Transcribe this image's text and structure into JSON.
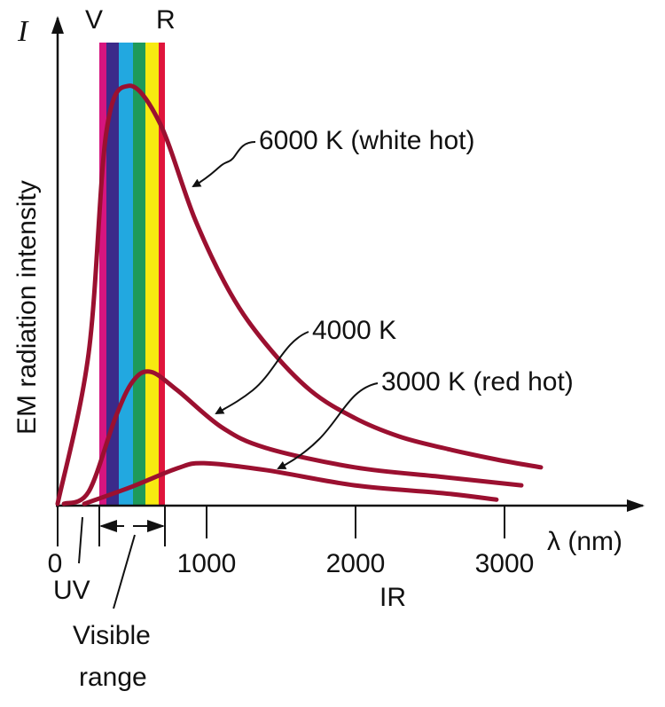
{
  "chart_data": {
    "type": "line",
    "ylabel": "EM radiation intensity",
    "y_symbol": "I",
    "xlabel": "λ (nm)",
    "xlim": [
      0,
      3800
    ],
    "ylim": [
      0,
      1
    ],
    "x_ticks": [
      {
        "value": 0,
        "label": "0"
      },
      {
        "value": 1000,
        "label": "1000"
      },
      {
        "value": 2000,
        "label": "2000"
      },
      {
        "value": 3000,
        "label": "3000"
      }
    ],
    "grid": false,
    "series": [
      {
        "name": "6000 K (white hot)",
        "color": "#9b1030",
        "x": [
          0,
          208,
          327,
          476,
          685,
          923,
          1161,
          1399,
          1696,
          1994,
          2292,
          2589,
          2946,
          3244
        ],
        "y": [
          0.004,
          0.33,
          0.81,
          0.91,
          0.83,
          0.62,
          0.46,
          0.35,
          0.25,
          0.19,
          0.15,
          0.125,
          0.1,
          0.083
        ]
      },
      {
        "name": "4000 K",
        "color": "#9b1030",
        "x": [
          42,
          208,
          387,
          506,
          625,
          804,
          1101,
          1399,
          1994,
          2589,
          3113
        ],
        "y": [
          0.004,
          0.03,
          0.19,
          0.27,
          0.29,
          0.25,
          0.17,
          0.125,
          0.083,
          0.062,
          0.044
        ]
      },
      {
        "name": "3000 K (red hot)",
        "color": "#9b1030",
        "x": [
          179,
          506,
          804,
          982,
          1399,
          1994,
          2589,
          2946
        ],
        "y": [
          0.004,
          0.042,
          0.081,
          0.092,
          0.077,
          0.044,
          0.027,
          0.013
        ]
      }
    ],
    "visible_band": {
      "label_violet": "V",
      "label_red": "R",
      "colors": [
        "#d6157f",
        "#3b2a8a",
        "#22a8e0",
        "#1e9a5a",
        "#f7ea10",
        "#e0153c"
      ]
    },
    "annotations": {
      "uv": "UV",
      "visible": [
        "Visible",
        "range"
      ],
      "ir": "IR"
    }
  }
}
